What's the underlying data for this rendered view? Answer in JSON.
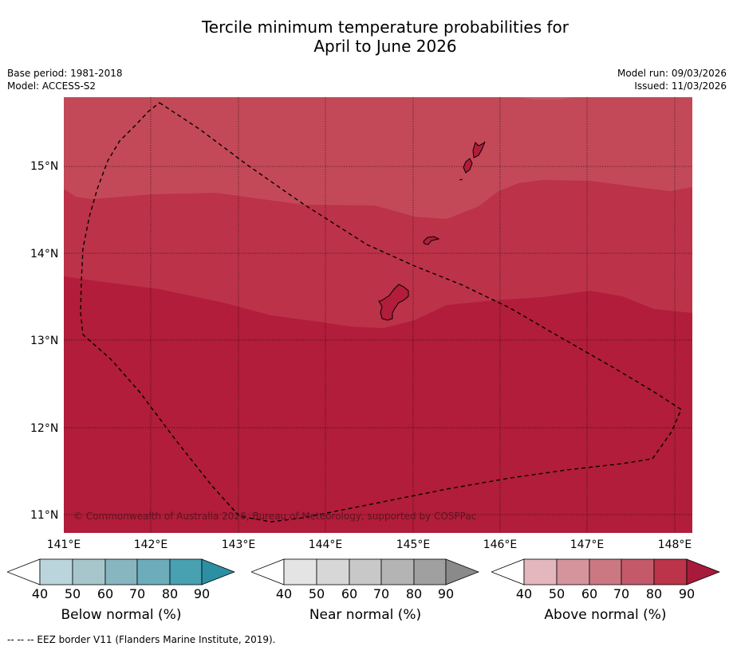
{
  "title": {
    "line1": "Tercile minimum temperature probabilities for",
    "line2": "April to June 2026"
  },
  "meta": {
    "base_period": "Base period: 1981-2018",
    "model": "Model: ACCESS-S2",
    "model_run": "Model run: 09/03/2026",
    "issued": "Issued: 11/03/2026"
  },
  "map": {
    "lat_labels": [
      "15°N",
      "14°N",
      "13°N",
      "12°N",
      "11°N"
    ],
    "lon_labels": [
      "141°E",
      "142°E",
      "143°E",
      "144°E",
      "145°E",
      "146°E",
      "147°E",
      "148°E"
    ],
    "copyright": "© Commonwealth of Australia 2026, Bureau of Meteorology, supported by COSPPac",
    "colors": {
      "band_70_80": "#c34958",
      "band_80_90": "#bc3249",
      "band_90_plus": "#b11d3a",
      "coast": "#000000",
      "eez": "#000000",
      "grid": "#000000"
    }
  },
  "legends": [
    {
      "name": "below",
      "title": "Below normal (%)",
      "ticks": [
        "40",
        "50",
        "60",
        "70",
        "80",
        "90"
      ],
      "colors": [
        "#ffffff",
        "#bad5dc",
        "#a7c6cb",
        "#87b6c0",
        "#6dadbb",
        "#47a1b1",
        "#2c8fa3"
      ]
    },
    {
      "name": "near",
      "title": "Near normal (%)",
      "ticks": [
        "40",
        "50",
        "60",
        "70",
        "80",
        "90"
      ],
      "colors": [
        "#ffffff",
        "#e4e4e4",
        "#d7d7d7",
        "#c8c8c8",
        "#b4b4b4",
        "#a0a0a0",
        "#8a8a8a"
      ]
    },
    {
      "name": "above",
      "title": "Above normal (%)",
      "ticks": [
        "40",
        "50",
        "60",
        "70",
        "80",
        "90"
      ],
      "colors": [
        "#ffffff",
        "#e3b7bd",
        "#d5949c",
        "#cb7883",
        "#c45a69",
        "#bb3449",
        "#a81a3b"
      ]
    }
  ],
  "footnote": "--  --  -- EEZ border V11 (Flanders Marine Institute, 2019)."
}
